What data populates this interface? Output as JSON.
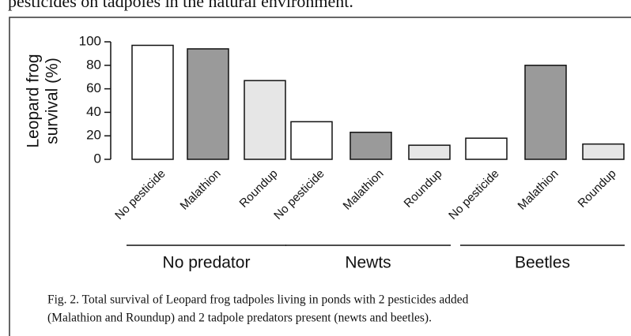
{
  "header_text": "pesticides on tadpoles in the natural environment.",
  "chart_data": {
    "type": "bar",
    "ylabel": [
      "Leopard frog",
      "survival (%)"
    ],
    "categories": [
      "No pesticide",
      "Malathion",
      "Roundup",
      "No pesticide",
      "Malathion",
      "Roundup",
      "No pesticide",
      "Malathion",
      "Roundup"
    ],
    "values": [
      97,
      94,
      67,
      32,
      23,
      12,
      18,
      80,
      13
    ],
    "colors": [
      "#ffffff",
      "#9a9a9a",
      "#e6e6e6"
    ],
    "groups": [
      "No predator",
      "Newts",
      "Beetles"
    ],
    "ylim": [
      0,
      100
    ],
    "yticks": [
      0,
      20,
      40,
      60,
      80,
      100
    ],
    "grid": false
  },
  "caption": [
    "Fig. 2.  Total survival of Leopard frog tadpoles living in ponds with 2 pesticides added",
    "(Malathion and Roundup) and 2 tadpole predators  present (newts and beetles)."
  ]
}
